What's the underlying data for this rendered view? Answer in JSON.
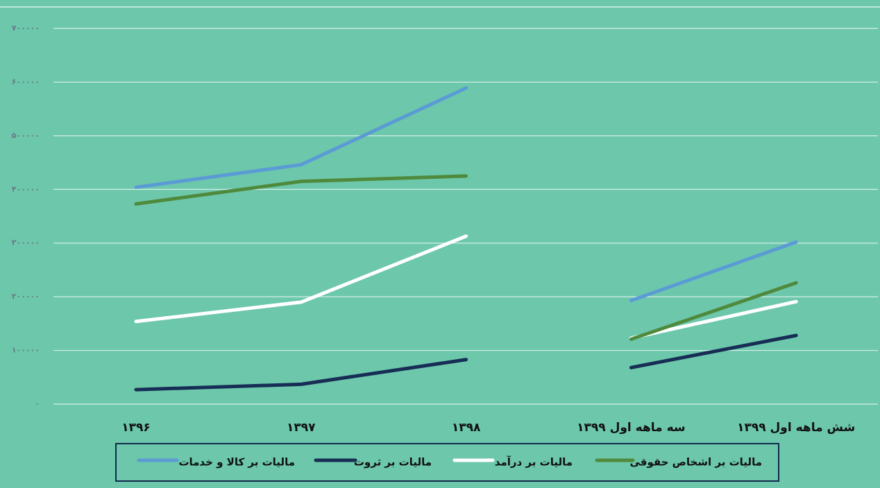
{
  "chart_data": {
    "type": "line",
    "categories": [
      "۱۳۹۶",
      "۱۳۹۷",
      "۱۳۹۸",
      "سه ماهه اول ۱۳۹۹",
      "شش ماهه اول ۱۳۹۹"
    ],
    "break_after_index": 2,
    "series": [
      {
        "name": "ماليات بر كالا و خدمات",
        "color": "#5b9bd5",
        "values": [
          404000,
          446000,
          589000,
          193000,
          302000
        ]
      },
      {
        "name": "ماليات بر ثروت",
        "color": "#172d55",
        "values": [
          27000,
          37000,
          83000,
          68000,
          128000
        ]
      },
      {
        "name": "ماليات بر درآمد",
        "color": "#ffffff",
        "values": [
          154000,
          190000,
          313000,
          123000,
          191000
        ]
      },
      {
        "name": "ماليات بر اشخاص حقوقی",
        "color": "#4f8a3c",
        "values": [
          373000,
          415000,
          425000,
          121000,
          226000
        ]
      }
    ],
    "ylim": [
      0,
      700000
    ],
    "yticks": [
      {
        "value": 0,
        "label": "۰"
      },
      {
        "value": 100000,
        "label": "۱۰۰۰۰۰"
      },
      {
        "value": 200000,
        "label": "۲۰۰۰۰۰"
      },
      {
        "value": 300000,
        "label": "۳۰۰۰۰۰"
      },
      {
        "value": 400000,
        "label": "۴۰۰۰۰۰"
      },
      {
        "value": 500000,
        "label": "۵۰۰۰۰۰"
      },
      {
        "value": 600000,
        "label": "۶۰۰۰۰۰"
      },
      {
        "value": 700000,
        "label": "۷۰۰۰۰۰"
      }
    ],
    "grid": true
  }
}
